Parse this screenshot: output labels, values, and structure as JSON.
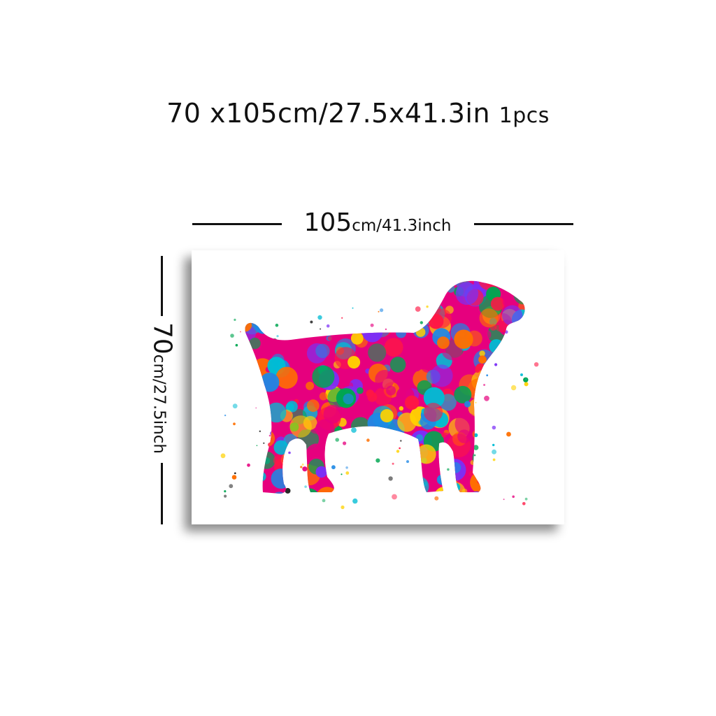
{
  "headline": {
    "size": "70 x105cm/27.5x41.3in",
    "qty": "1pcs"
  },
  "width_label": {
    "number": "105",
    "unit": "cm/41.3inch"
  },
  "height_label": {
    "number": "70",
    "unit": "cm/27.5inch"
  },
  "artwork": {
    "subject": "dog-silhouette",
    "palette": [
      "#e6007e",
      "#ffd200",
      "#1e88e5",
      "#00a651",
      "#7b2ff7",
      "#ff6f00",
      "#ff1744",
      "#00bcd4"
    ]
  }
}
